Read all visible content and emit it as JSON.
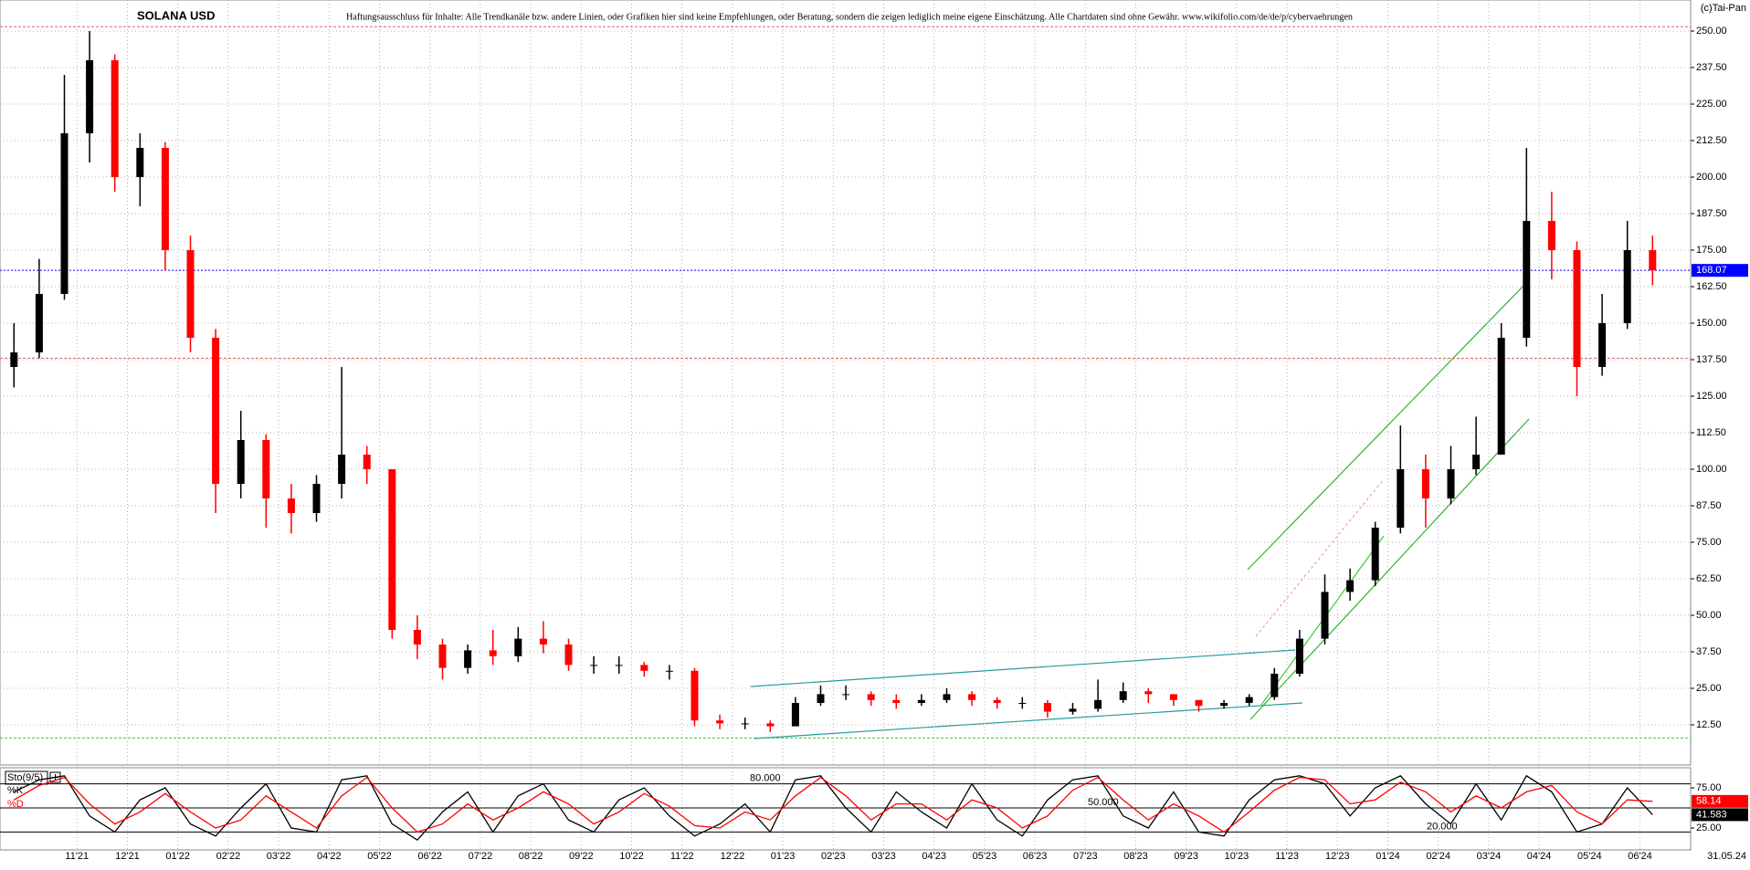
{
  "chart_data": [
    {
      "type": "candlestick",
      "title": "SOLANA USD",
      "subtitle": "Haftungsausschluss für Inhalte: Alle Trendkanäle bzw. andere Linien, oder Grafiken hier sind keine Empfehlungen, oder Beratung, sondern die zeigen lediglich meine eigene Einschätzung. Alle Chartdaten sind ohne Gewähr. www.wikifolio.com/de/de/p/cybervaehrungen",
      "source": "(c)Tai-Pan",
      "x_end_label": "31.05.24",
      "categories": [
        null,
        null,
        null,
        "11'21",
        null,
        "12'21",
        null,
        "01'22",
        null,
        "02'22",
        null,
        "03'22",
        null,
        "04'22",
        null,
        "05'22",
        null,
        "06'22",
        null,
        "07'22",
        null,
        "08'22",
        null,
        "09'22",
        null,
        "10'22",
        null,
        "11'22",
        null,
        "12'22",
        null,
        "01'23",
        null,
        "02'23",
        null,
        "03'23",
        null,
        "04'23",
        null,
        "05'23",
        null,
        "06'23",
        null,
        "07'23",
        null,
        "08'23",
        null,
        "09'23",
        null,
        "10'23",
        null,
        "11'23",
        null,
        "12'23",
        null,
        "01'24",
        null,
        "02'24",
        null,
        "03'24",
        null,
        "04'24",
        null,
        "05'24",
        null,
        "06'24"
      ],
      "open": [
        135,
        140,
        160,
        215,
        240,
        200,
        210,
        175,
        145,
        95,
        110,
        90,
        85,
        95,
        105,
        100,
        45,
        40,
        32,
        38,
        36,
        42,
        40,
        33,
        33,
        33,
        31,
        31,
        14,
        13,
        13,
        12,
        20,
        23,
        23,
        21,
        20,
        21,
        23,
        21,
        20,
        20,
        17,
        18,
        21,
        24,
        23,
        21,
        19,
        20,
        22,
        30,
        42,
        58,
        62,
        80,
        100,
        90,
        100,
        105,
        145,
        185,
        175,
        135,
        150,
        175
      ],
      "high": [
        150,
        172,
        235,
        250,
        242,
        215,
        212,
        180,
        148,
        120,
        112,
        95,
        98,
        135,
        108,
        100,
        50,
        42,
        40,
        45,
        46,
        48,
        42,
        36,
        36,
        34,
        33,
        32,
        16,
        15,
        14,
        22,
        26,
        26,
        24,
        23,
        23,
        25,
        24,
        22,
        22,
        21,
        20,
        28,
        27,
        25,
        23,
        21,
        21,
        23,
        32,
        45,
        64,
        66,
        82,
        115,
        105,
        108,
        118,
        150,
        210,
        195,
        178,
        160,
        185,
        180
      ],
      "low": [
        128,
        138,
        158,
        205,
        195,
        190,
        168,
        140,
        85,
        90,
        80,
        78,
        82,
        90,
        95,
        42,
        35,
        28,
        30,
        33,
        34,
        37,
        31,
        30,
        30,
        29,
        28,
        12,
        11,
        11,
        10,
        12,
        19,
        21,
        19,
        18,
        19,
        20,
        19,
        18,
        18,
        15,
        16,
        17,
        20,
        20,
        19,
        17,
        18,
        19,
        21,
        29,
        40,
        55,
        60,
        78,
        80,
        88,
        98,
        105,
        142,
        165,
        125,
        132,
        148,
        163
      ],
      "close": [
        140,
        160,
        215,
        240,
        200,
        210,
        175,
        145,
        95,
        110,
        90,
        85,
        95,
        105,
        100,
        45,
        40,
        32,
        38,
        36,
        42,
        40,
        33,
        33,
        33,
        31,
        31,
        14,
        13,
        13,
        12,
        20,
        23,
        23,
        21,
        20,
        21,
        23,
        21,
        20,
        20,
        17,
        18,
        21,
        24,
        23,
        21,
        19,
        20,
        22,
        30,
        42,
        58,
        62,
        80,
        100,
        90,
        100,
        105,
        145,
        185,
        175,
        135,
        150,
        175,
        168.07
      ],
      "up_color": "#000000",
      "down_color": "#ff0000",
      "ylim": [
        -1.25,
        260.625
      ],
      "yticks": [
        {
          "value": 12.5,
          "label": "12.50"
        },
        {
          "value": 25,
          "label": "25.00"
        },
        {
          "value": 37.5,
          "label": "37.50"
        },
        {
          "value": 50,
          "label": "50.00"
        },
        {
          "value": 62.5,
          "label": "62.50"
        },
        {
          "value": 75,
          "label": "75.00"
        },
        {
          "value": 87.5,
          "label": "87.50"
        },
        {
          "value": 100,
          "label": "100.00"
        },
        {
          "value": 112.5,
          "label": "112.50"
        },
        {
          "value": 125,
          "label": "125.00"
        },
        {
          "value": 137.5,
          "label": "137.50"
        },
        {
          "value": 150,
          "label": "150.00"
        },
        {
          "value": 162.5,
          "label": "162.50"
        },
        {
          "value": 175,
          "label": "175.00"
        },
        {
          "value": 187.5,
          "label": "187.50"
        },
        {
          "value": 200,
          "label": "200.00"
        },
        {
          "value": 212.5,
          "label": "212.50"
        },
        {
          "value": 225,
          "label": "225.00"
        },
        {
          "value": 237.5,
          "label": "237.50"
        },
        {
          "value": 250,
          "label": "250.00"
        }
      ],
      "grid": true,
      "last_price": 168.07,
      "last_price_color": "#0000ff",
      "reference_lines": [
        {
          "value": 251.5,
          "color": "#e06060"
        },
        {
          "value": 138,
          "color": "#e06060"
        },
        {
          "value": 8,
          "color": "#40c040"
        }
      ]
    },
    {
      "type": "line",
      "title": "Sto(9/5)",
      "ylim": [
        0,
        100
      ],
      "yticks": [
        {
          "value": 75,
          "label": "75.00"
        },
        {
          "value": 25,
          "label": "25.00"
        }
      ],
      "levels": [
        {
          "value": 80,
          "label": "80.000"
        },
        {
          "value": 50,
          "label": "50.000"
        },
        {
          "value": 20,
          "label": "20.000"
        }
      ],
      "series": [
        {
          "name": "%K",
          "color": "#000000",
          "values": [
            70,
            85,
            90,
            40,
            20,
            60,
            75,
            30,
            15,
            50,
            80,
            25,
            20,
            85,
            90,
            30,
            10,
            45,
            70,
            20,
            65,
            80,
            35,
            20,
            60,
            75,
            40,
            15,
            30,
            55,
            20,
            85,
            90,
            50,
            20,
            70,
            45,
            25,
            80,
            35,
            15,
            60,
            85,
            90,
            40,
            25,
            70,
            20,
            15,
            60,
            85,
            90,
            80,
            40,
            75,
            90,
            55,
            30,
            80,
            35,
            90,
            70,
            20,
            30,
            75,
            41.583
          ]
        },
        {
          "name": "%D",
          "color": "#ff0000",
          "values": [
            60,
            78,
            88,
            55,
            30,
            45,
            68,
            45,
            25,
            35,
            65,
            45,
            25,
            65,
            88,
            50,
            20,
            30,
            55,
            35,
            50,
            70,
            55,
            30,
            45,
            68,
            52,
            28,
            25,
            45,
            35,
            65,
            88,
            65,
            35,
            55,
            55,
            35,
            60,
            50,
            25,
            40,
            72,
            88,
            60,
            35,
            55,
            40,
            20,
            45,
            72,
            88,
            85,
            55,
            60,
            82,
            70,
            45,
            65,
            50,
            70,
            78,
            45,
            30,
            60,
            58.14
          ]
        }
      ]
    }
  ]
}
